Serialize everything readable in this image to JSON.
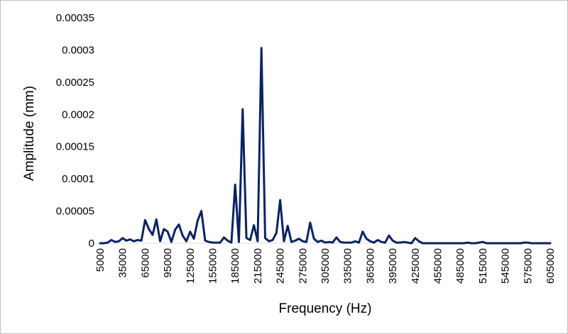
{
  "chart_data": {
    "type": "line",
    "title": "",
    "xlabel": "Frequency (Hz)",
    "ylabel": "Amplitude (mm)",
    "xlim": [
      5000,
      605000
    ],
    "ylim": [
      0,
      0.00035
    ],
    "grid": false,
    "legend": "none",
    "line_color": "#0b2265",
    "x_tick_labels": [
      "5000",
      "35000",
      "65000",
      "95000",
      "125000",
      "155000",
      "185000",
      "215000",
      "245000",
      "275000",
      "305000",
      "335000",
      "365000",
      "395000",
      "425000",
      "455000",
      "485000",
      "515000",
      "545000",
      "575000",
      "605000"
    ],
    "y_tick_labels": [
      "0",
      "0.00005",
      "0.0001",
      "0.00015",
      "0.0002",
      "0.00025",
      "0.0003",
      "0.00035"
    ],
    "series": [
      {
        "x": [
          5000,
          10000,
          15000,
          20000,
          25000,
          30000,
          35000,
          40000,
          45000,
          50000,
          55000,
          60000,
          65000,
          70000,
          75000,
          80000,
          85000,
          90000,
          95000,
          100000,
          105000,
          110000,
          115000,
          120000,
          125000,
          130000,
          135000,
          140000,
          145000,
          150000,
          155000,
          160000,
          165000,
          170000,
          175000,
          180000,
          185000,
          190000,
          195000,
          200000,
          205000,
          210000,
          215000,
          220000,
          225000,
          230000,
          235000,
          240000,
          245000,
          250000,
          255000,
          260000,
          265000,
          270000,
          275000,
          280000,
          285000,
          290000,
          295000,
          300000,
          305000,
          310000,
          315000,
          320000,
          325000,
          330000,
          335000,
          340000,
          345000,
          350000,
          355000,
          360000,
          365000,
          370000,
          375000,
          380000,
          385000,
          390000,
          395000,
          400000,
          405000,
          410000,
          415000,
          420000,
          425000,
          430000,
          435000,
          440000,
          445000,
          450000,
          455000,
          460000,
          465000,
          470000,
          475000,
          480000,
          485000,
          490000,
          495000,
          500000,
          505000,
          510000,
          515000,
          520000,
          525000,
          530000,
          535000,
          540000,
          545000,
          550000,
          555000,
          560000,
          565000,
          570000,
          575000,
          580000,
          585000,
          590000,
          595000,
          600000,
          605000
        ],
        "values": [
          0,
          0,
          1e-06,
          5e-06,
          2e-06,
          3e-06,
          8e-06,
          4e-06,
          6e-06,
          3e-06,
          5e-06,
          4e-06,
          3.6e-05,
          2.2e-05,
          1.3e-05,
          3.7e-05,
          3e-06,
          2.2e-05,
          1.8e-05,
          2e-06,
          2.1e-05,
          2.9e-05,
          1.2e-05,
          3e-06,
          1.8e-05,
          7e-06,
          3.5e-05,
          5e-05,
          4e-06,
          2e-06,
          1e-06,
          1e-06,
          1e-06,
          9e-06,
          4e-06,
          1e-06,
          9.1e-05,
          2e-06,
          0.000208,
          8e-06,
          5e-06,
          2.8e-05,
          3e-06,
          0.000303,
          8e-06,
          3e-06,
          5e-06,
          1.6e-05,
          6.7e-05,
          3e-06,
          2.7e-05,
          2e-06,
          4e-06,
          7e-06,
          3e-06,
          2e-06,
          3.2e-05,
          7e-06,
          2e-06,
          4e-06,
          1e-06,
          2e-06,
          1e-06,
          9e-06,
          2e-06,
          1e-06,
          1e-06,
          1e-06,
          3e-06,
          1e-06,
          1.8e-05,
          7e-06,
          3e-06,
          1e-06,
          5e-06,
          2e-06,
          1e-06,
          1.2e-05,
          4e-06,
          1e-06,
          1e-06,
          2e-06,
          1e-06,
          0,
          8e-06,
          3e-06,
          0,
          0,
          0,
          0,
          0,
          0,
          0,
          0,
          0,
          0,
          0,
          0,
          1e-06,
          0,
          0,
          1e-06,
          2e-06,
          0,
          0,
          0,
          0,
          0,
          0,
          0,
          0,
          0,
          0,
          1e-06,
          1e-06,
          0,
          0,
          0,
          0,
          0,
          0
        ]
      }
    ]
  }
}
